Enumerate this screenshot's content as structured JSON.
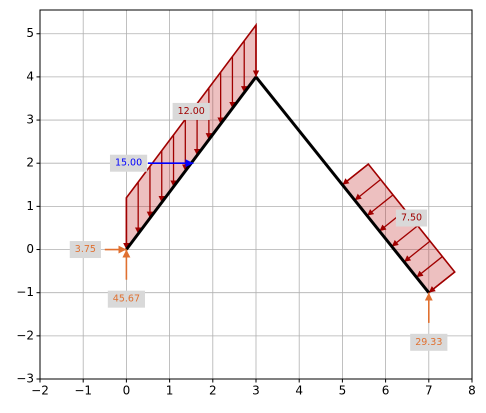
{
  "chart_data": {
    "type": "structure",
    "xlim": [
      -2,
      8
    ],
    "ylim": [
      -3,
      5.55
    ],
    "xticks": [
      {
        "value": -2,
        "label": "−2"
      },
      {
        "value": -1,
        "label": "−1"
      },
      0,
      1,
      2,
      3,
      4,
      5,
      6,
      7,
      8
    ],
    "yticks": [
      {
        "value": -3,
        "label": "−3"
      },
      {
        "value": -2,
        "label": "−2"
      },
      {
        "value": -1,
        "label": "−1"
      },
      0,
      1,
      2,
      3,
      4,
      5
    ],
    "grid": true,
    "members": [
      {
        "x": [
          0,
          3
        ],
        "y": [
          0,
          4
        ]
      },
      {
        "x": [
          3,
          7
        ],
        "y": [
          4,
          -1
        ]
      }
    ],
    "distributed_loads": [
      {
        "label": "12.00",
        "color": "#a00000",
        "start": [
          0,
          0
        ],
        "end": [
          3,
          4
        ],
        "offset": [
          0,
          1.2
        ]
      },
      {
        "label": "7.50",
        "color": "#a00000",
        "start": [
          5,
          1.5
        ],
        "end": [
          7,
          -1
        ],
        "offset": [
          0.6,
          0.48
        ]
      }
    ],
    "point_loads": [
      {
        "label": "15.00",
        "color": "#0000ff",
        "x": 1.55,
        "y": 2,
        "dx": -1.05,
        "dy": 0
      }
    ],
    "reactions": [
      {
        "label": "3.75",
        "color": "#e07030",
        "x": 0,
        "y": 0,
        "dx": -0.5,
        "dy": 0
      },
      {
        "label": "45.67",
        "color": "#e07030",
        "x": 0,
        "y": 0,
        "dx": 0,
        "dy": -0.7
      },
      {
        "label": "29.33",
        "color": "#e07030",
        "x": 7,
        "y": -1,
        "dx": 0,
        "dy": -0.7
      }
    ]
  }
}
